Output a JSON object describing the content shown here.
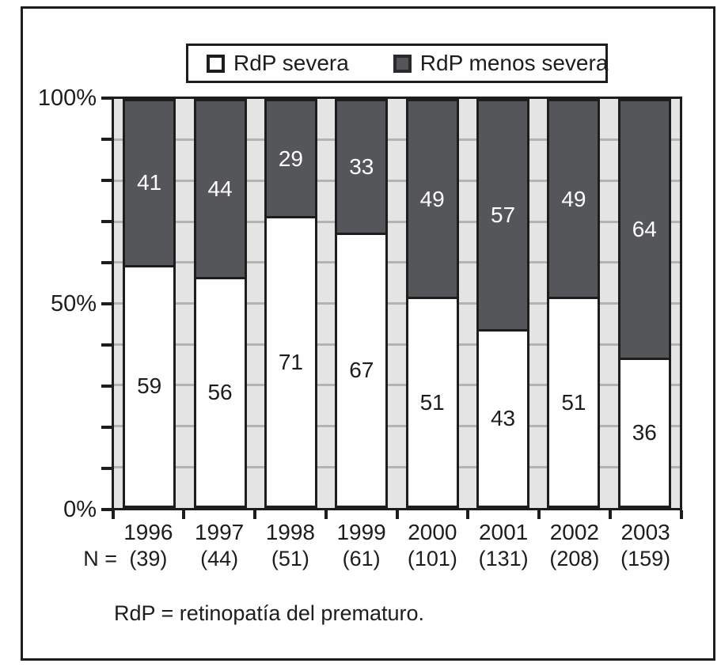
{
  "chart_data": {
    "type": "bar",
    "stacked": true,
    "unit": "percent",
    "categories": [
      "1996",
      "1997",
      "1998",
      "1999",
      "2000",
      "2001",
      "2002",
      "2003"
    ],
    "n_prefix": "N =",
    "n_values": [
      "(39)",
      "(44)",
      "(51)",
      "(61)",
      "(101)",
      "(131)",
      "(208)",
      "(159)"
    ],
    "series": [
      {
        "name": "RdP severa",
        "color": "#ffffff",
        "values": [
          59,
          56,
          71,
          67,
          51,
          43,
          51,
          36
        ]
      },
      {
        "name": "RdP menos severa",
        "color": "#55565a",
        "values": [
          41,
          44,
          29,
          33,
          49,
          57,
          49,
          64
        ]
      }
    ],
    "y_axis": {
      "ylim": [
        0,
        100
      ],
      "tick_step": 10,
      "labels": [
        {
          "text": "100%",
          "value": 100
        },
        {
          "text": "50%",
          "value": 50
        },
        {
          "text": "0%",
          "value": 0
        }
      ]
    },
    "legend_position": "top",
    "gridlines": true,
    "value_labels": "centered-in-segment",
    "footnote": "RdP = retinopatía del prematuro."
  },
  "colors": {
    "bar_dark": "#55565a",
    "bar_light": "#ffffff",
    "plot_background": "#e4e4e4",
    "gridline": "#b3b3b3",
    "line": "#1d1d1d",
    "background": "#ffffff"
  }
}
